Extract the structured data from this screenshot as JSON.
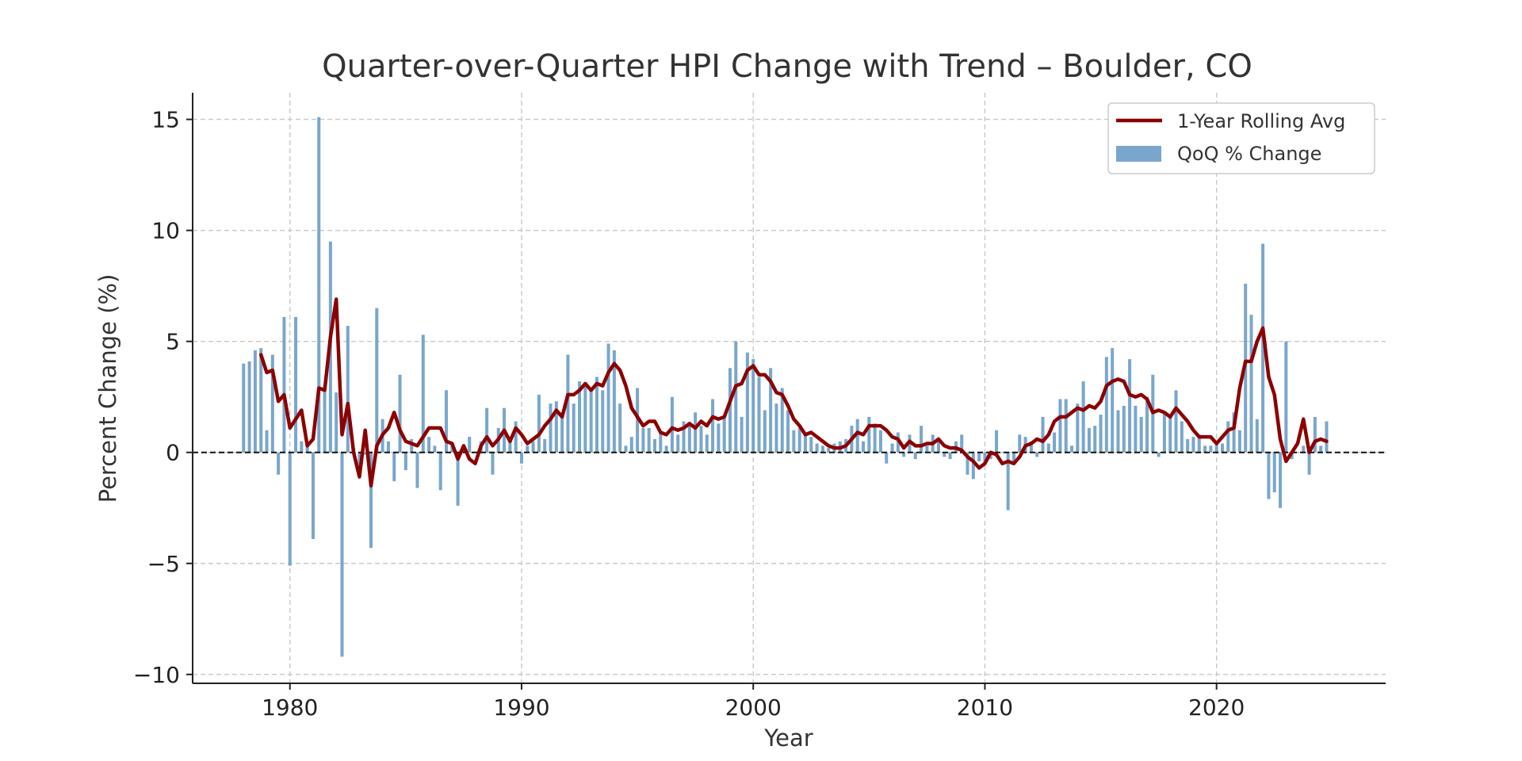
{
  "chart_data": {
    "type": "bar",
    "title": "Quarter-over-Quarter HPI Change with Trend – Boulder, CO",
    "xlabel": "Year",
    "ylabel": "Percent Change (%)",
    "xlim": [
      1975.8,
      2027.3
    ],
    "ylim": [
      -10.4,
      16.2
    ],
    "x_ticks": [
      1980,
      1990,
      2000,
      2010,
      2020
    ],
    "y_ticks": [
      -10,
      -5,
      0,
      5,
      10,
      15
    ],
    "y_tick_labels": [
      "−10",
      "−5",
      "0",
      "5",
      "10",
      "15"
    ],
    "grid": true,
    "zero_line": true,
    "legend_position": "top-right",
    "start_year": 1978,
    "quarters_per_year": 4,
    "bar_color": "#7aa6cc",
    "line_color": "#8b0000",
    "series": [
      {
        "name": "QoQ % Change",
        "kind": "bar",
        "values": [
          4.0,
          4.1,
          4.6,
          4.7,
          1.0,
          4.4,
          -1.0,
          6.1,
          -5.1,
          6.1,
          0.5,
          0.3,
          -3.9,
          15.1,
          3.0,
          9.5,
          2.7,
          -9.2,
          5.7,
          0.2,
          -1.1,
          -0.1,
          -4.3,
          6.5,
          1.5,
          0.5,
          -1.3,
          3.5,
          -0.8,
          0.6,
          -1.6,
          5.3,
          0.7,
          0.3,
          -1.7,
          2.8,
          0.4,
          -2.4,
          0.1,
          0.7,
          0.0,
          0.5,
          2.0,
          -1.0,
          1.1,
          2.0,
          0.7,
          1.4,
          -0.5,
          0.3,
          0.5,
          2.6,
          0.6,
          2.2,
          2.3,
          1.8,
          4.4,
          2.2,
          3.2,
          3.0,
          2.9,
          3.4,
          2.8,
          4.9,
          4.6,
          2.2,
          0.3,
          0.7,
          2.9,
          1.1,
          1.1,
          0.6,
          0.9,
          0.3,
          2.5,
          0.8,
          1.4,
          1.2,
          1.8,
          1.2,
          0.8,
          2.4,
          1.3,
          1.6,
          3.8,
          5.0,
          1.6,
          4.5,
          4.2,
          3.4,
          1.9,
          3.8,
          2.2,
          2.9,
          1.9,
          1.0,
          1.1,
          0.8,
          0.7,
          0.4,
          0.3,
          0.2,
          0.4,
          0.5,
          0.6,
          1.2,
          1.5,
          0.5,
          1.6,
          1.3,
          1.0,
          -0.5,
          0.4,
          0.9,
          -0.2,
          0.8,
          -0.3,
          1.2,
          0.3,
          0.8,
          0.6,
          -0.2,
          -0.3,
          0.5,
          0.8,
          -1.0,
          -1.2,
          -0.4,
          -0.5,
          -0.3,
          1.0,
          0.0,
          -2.6,
          -0.5,
          0.8,
          0.7,
          0.5,
          -0.2,
          1.6,
          0.4,
          0.9,
          2.4,
          2.4,
          0.3,
          2.2,
          3.2,
          1.1,
          1.2,
          1.7,
          4.3,
          4.7,
          1.9,
          2.1,
          4.2,
          2.1,
          1.6,
          2.5,
          3.5,
          -0.2,
          1.8,
          1.6,
          2.8,
          1.4,
          0.6,
          0.7,
          0.8,
          0.3,
          0.3,
          0.5,
          0.4,
          1.4,
          1.8,
          1.0,
          7.6,
          6.2,
          1.5,
          9.4,
          -2.1,
          -1.8,
          -2.5,
          5.0,
          -0.3,
          0.0,
          0.3,
          -1.0,
          1.6,
          0.3,
          1.4
        ]
      },
      {
        "name": "1-Year Rolling Avg",
        "kind": "line",
        "start_index": 3,
        "values": [
          4.4,
          3.6,
          3.7,
          2.3,
          2.6,
          1.1,
          1.5,
          1.9,
          0.3,
          0.6,
          2.9,
          2.8,
          5.2,
          6.9,
          0.8,
          2.2,
          0.0,
          -1.1,
          1.0,
          -1.5,
          0.3,
          0.8,
          1.1,
          1.8,
          1.0,
          0.5,
          0.4,
          0.3,
          0.7,
          1.1,
          1.1,
          1.1,
          0.5,
          0.4,
          -0.3,
          0.3,
          -0.3,
          -0.5,
          0.3,
          0.7,
          0.3,
          0.6,
          1.0,
          0.5,
          1.1,
          0.8,
          0.4,
          0.6,
          0.8,
          1.2,
          1.5,
          1.9,
          1.6,
          2.6,
          2.6,
          2.8,
          3.1,
          2.8,
          3.1,
          3.0,
          3.6,
          4.0,
          3.7,
          3.0,
          2.0,
          1.6,
          1.2,
          1.4,
          1.4,
          0.9,
          0.8,
          1.1,
          1.0,
          1.1,
          1.3,
          1.1,
          1.4,
          1.2,
          1.6,
          1.5,
          1.6,
          2.3,
          3.0,
          3.1,
          3.7,
          3.9,
          3.5,
          3.5,
          3.2,
          2.7,
          2.6,
          2.1,
          1.5,
          1.2,
          0.8,
          0.9,
          0.7,
          0.5,
          0.3,
          0.2,
          0.2,
          0.3,
          0.6,
          0.9,
          0.8,
          1.2,
          1.2,
          1.2,
          1.0,
          0.7,
          0.6,
          0.2,
          0.5,
          0.3,
          0.3,
          0.4,
          0.4,
          0.6,
          0.3,
          0.2,
          0.2,
          0.1,
          -0.2,
          -0.4,
          -0.7,
          -0.5,
          0.0,
          -0.1,
          -0.5,
          -0.4,
          -0.5,
          -0.2,
          0.3,
          0.4,
          0.6,
          0.5,
          0.8,
          1.4,
          1.6,
          1.6,
          1.8,
          2.0,
          1.9,
          2.1,
          2.0,
          2.3,
          3.0,
          3.2,
          3.3,
          3.2,
          2.6,
          2.5,
          2.6,
          2.4,
          1.8,
          1.9,
          1.8,
          1.6,
          2.0,
          1.7,
          1.4,
          1.0,
          0.7,
          0.7,
          0.7,
          0.4,
          0.7,
          1.0,
          1.1,
          2.9,
          4.1,
          4.1,
          5.0,
          5.6,
          3.4,
          2.6,
          0.6,
          -0.4,
          0.0,
          0.4,
          1.5,
          0.0,
          0.5,
          0.6,
          0.5
        ]
      }
    ]
  }
}
